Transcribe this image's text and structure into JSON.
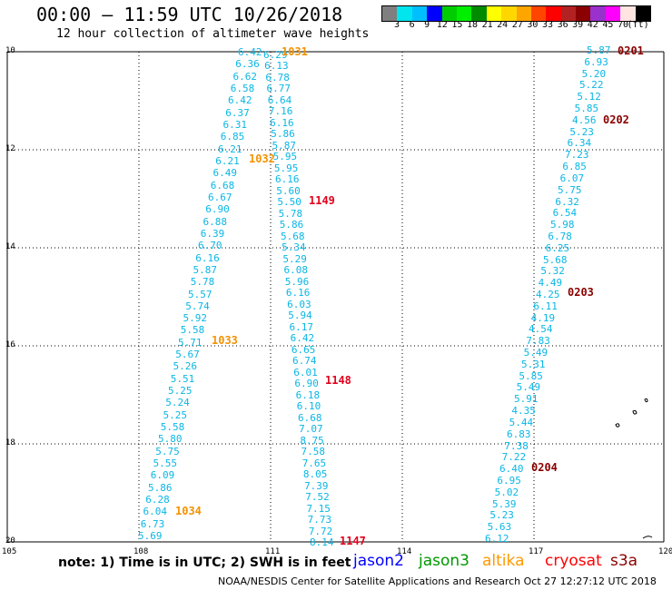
{
  "title": "00:00 – 11:59 UTC 10/26/2018",
  "subtitle": "12 hour collection of altimeter wave heights",
  "colorbar": {
    "colors": [
      "#7f7f7f",
      "#00e5ee",
      "#00bfff",
      "#0000ff",
      "#00cd00",
      "#00ee00",
      "#008b00",
      "#ffff00",
      "#ffd700",
      "#ffa500",
      "#ff4500",
      "#ff0000",
      "#b22222",
      "#8b0000",
      "#9932cc",
      "#ff00ff",
      "#ffe4e1",
      "#000000"
    ],
    "labels": [
      "3",
      "6",
      "9",
      "12",
      "15",
      "18",
      "21",
      "24",
      "27",
      "30",
      "33",
      "36",
      "39",
      "42",
      "45",
      "70",
      "(ft)"
    ]
  },
  "axes": {
    "lon_labels": [
      "105",
      "108",
      "111",
      "114",
      "117",
      "120"
    ],
    "lat_labels": [
      "10",
      "12",
      "14",
      "16",
      "18",
      "20"
    ]
  },
  "tracks": [
    {
      "name": "track-1034-1031",
      "values": [
        "6.42",
        "6.36",
        "6.62",
        "6.58",
        "6.42",
        "6.37",
        "6.31",
        "6.85",
        "6.21",
        "6.21",
        "6.49",
        "6.68",
        "6.67",
        "6.90",
        "6.88",
        "6.39",
        "6.70",
        "6.16",
        "5.87",
        "5.78",
        "5.57",
        "5.74",
        "5.92",
        "5.58",
        "5.71",
        "5.67",
        "5.26",
        "5.51",
        "5.25",
        "5.24",
        "5.25",
        "5.58",
        "5.80",
        "5.75",
        "5.55",
        "6.09",
        "5.86",
        "6.28",
        "6.04",
        "6.73",
        "5.69"
      ]
    },
    {
      "name": "track-1031-1147",
      "values": [
        "6.29",
        "6.13",
        "6.78",
        "6.77",
        "6.64",
        "7.16",
        "6.16",
        "5.86",
        "5.87",
        "5.95",
        "5.95",
        "6.16",
        "5.60",
        "5.50",
        "5.78",
        "5.86",
        "5.68",
        "5.34",
        "5.29",
        "6.08",
        "5.96",
        "6.16",
        "6.03",
        "5.94",
        "6.17",
        "6.42",
        "6.65",
        "6.74",
        "6.01",
        "6.90",
        "6.18",
        "6.10",
        "6.68",
        "7.07",
        "8.75",
        "7.58",
        "7.65",
        "8.05",
        "7.39",
        "7.52",
        "7.15",
        "7.73",
        "7.72",
        "8.14"
      ]
    },
    {
      "name": "track-0201-0204",
      "values": [
        "5.87",
        "6.93",
        "5.20",
        "5.22",
        "5.12",
        "5.85",
        "4.56",
        "5.23",
        "6.34",
        "7.23",
        "6.85",
        "6.07",
        "5.75",
        "6.32",
        "6.54",
        "5.98",
        "6.78",
        "6.25",
        "5.68",
        "5.32",
        "4.49",
        "4.25",
        "6.11",
        "4.19",
        "4.54",
        "7.83",
        "5.49",
        "5.31",
        "5.85",
        "5.49",
        "5.91",
        "4.35",
        "5.44",
        "6.83",
        "7.38",
        "7.22",
        "6.40",
        "6.95",
        "5.02",
        "5.39",
        "5.23",
        "5.63",
        "6.12"
      ]
    }
  ],
  "time_labels": [
    {
      "text": "1031",
      "color": "#f39200"
    },
    {
      "text": "1032",
      "color": "#f39200"
    },
    {
      "text": "1033",
      "color": "#f39200"
    },
    {
      "text": "1034",
      "color": "#f39200"
    },
    {
      "text": "1149",
      "color": "#e2001a"
    },
    {
      "text": "1148",
      "color": "#e2001a"
    },
    {
      "text": "1147",
      "color": "#e2001a"
    },
    {
      "text": "0201",
      "color": "#8b0000"
    },
    {
      "text": "0202",
      "color": "#8b0000"
    },
    {
      "text": "0203",
      "color": "#8b0000"
    },
    {
      "text": "0204",
      "color": "#8b0000"
    }
  ],
  "note": "note: 1) Time is in UTC; 2) SWH is in feet",
  "satellites": [
    {
      "name": "jason2",
      "color": "#0000ff"
    },
    {
      "name": "jason3",
      "color": "#009900"
    },
    {
      "name": "altika",
      "color": "#ff9900"
    },
    {
      "name": "cryosat",
      "color": "#ff0000"
    },
    {
      "name": "s3a",
      "color": "#8b0000"
    }
  ],
  "footer": "NOAA/NESDIS Center for Satellite Applications and Research   Oct 27 12:27:12 UTC 2018"
}
